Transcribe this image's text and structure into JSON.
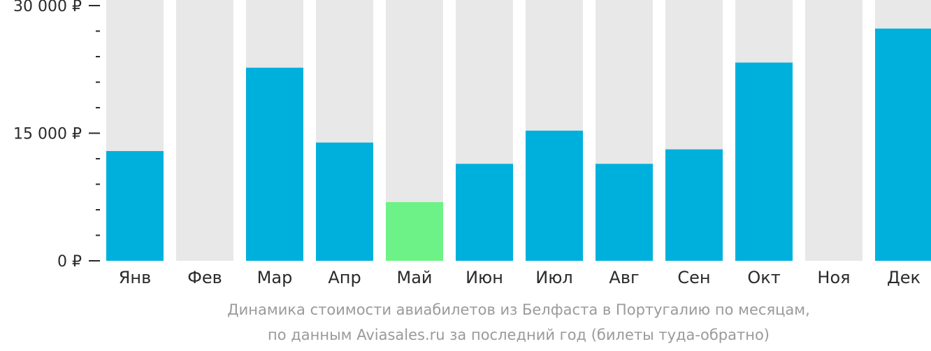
{
  "chart_data": {
    "type": "bar",
    "categories": [
      "Янв",
      "Фев",
      "Мар",
      "Апр",
      "Май",
      "Июн",
      "Июл",
      "Авг",
      "Сен",
      "Окт",
      "Ноя",
      "Дек"
    ],
    "values": [
      12900,
      null,
      22700,
      13900,
      6900,
      11400,
      15300,
      11400,
      13100,
      23300,
      null,
      27300
    ],
    "ylim": [
      0,
      30000
    ],
    "yticks": [
      0,
      15000,
      30000
    ],
    "ytick_labels": [
      "0 ₽",
      "15 000 ₽",
      "30 000 ₽"
    ],
    "minor_ticks_between_major": 4,
    "title": "",
    "xlabel": "",
    "ylabel": "",
    "highlight_index": 4
  },
  "colors": {
    "bar": "#00b0dc",
    "highlight": "#6cf286",
    "background_column": "#e8e8e8",
    "axis_text": "#2a2a2a",
    "caption": "#9a9a9a"
  },
  "caption": {
    "line1": "Динамика стоимости авиабилетов из Белфаста в Португалию по месяцам,",
    "line2": "по данным Aviasales.ru за последний год (билеты туда-обратно)"
  }
}
